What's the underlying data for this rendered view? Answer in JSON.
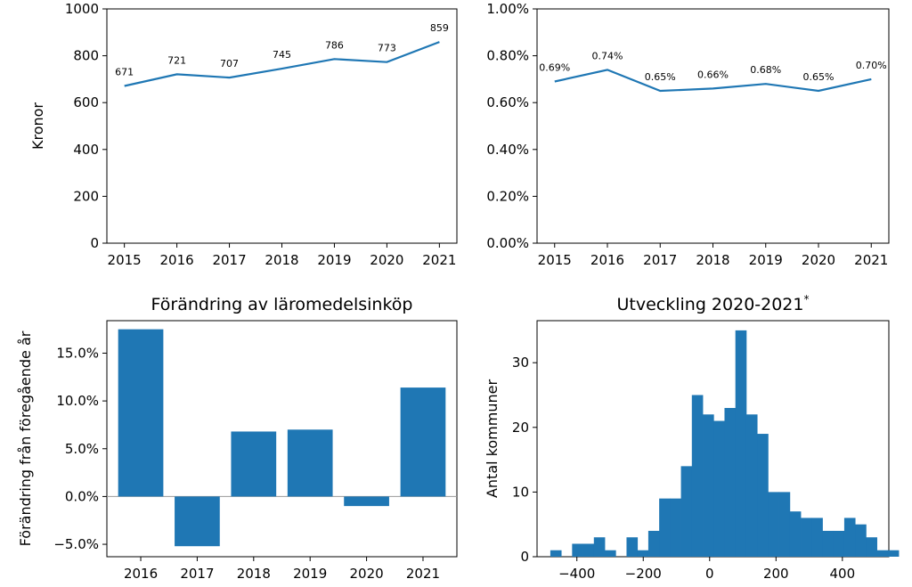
{
  "chart_data": [
    {
      "type": "line",
      "title": "",
      "xlabel": "",
      "ylabel": "Kronor",
      "x": [
        2015,
        2016,
        2017,
        2018,
        2019,
        2020,
        2021
      ],
      "values": [
        671,
        721,
        707,
        745,
        786,
        773,
        859
      ],
      "data_labels": [
        "671",
        "721",
        "707",
        "745",
        "786",
        "773",
        "859"
      ],
      "ylim": [
        0,
        1000
      ],
      "yticks": [
        0,
        200,
        400,
        600,
        800,
        1000
      ],
      "ytick_labels": [
        "0",
        "200",
        "400",
        "600",
        "800",
        "1000"
      ],
      "grid": false,
      "color": "#1f77b4"
    },
    {
      "type": "line",
      "title": "",
      "xlabel": "",
      "ylabel": "",
      "x": [
        2015,
        2016,
        2017,
        2018,
        2019,
        2020,
        2021
      ],
      "values": [
        0.69,
        0.74,
        0.65,
        0.66,
        0.68,
        0.65,
        0.7
      ],
      "data_labels": [
        "0.69%",
        "0.74%",
        "0.65%",
        "0.66%",
        "0.68%",
        "0.65%",
        "0.70%"
      ],
      "ylim": [
        0,
        1.0
      ],
      "yticks": [
        0,
        0.2,
        0.4,
        0.6,
        0.8,
        1.0
      ],
      "ytick_labels": [
        "0.00%",
        "0.20%",
        "0.40%",
        "0.60%",
        "0.80%",
        "1.00%"
      ],
      "grid": false,
      "color": "#1f77b4"
    },
    {
      "type": "bar",
      "title": "Förändring av läromedelsinköp",
      "xlabel": "",
      "ylabel": "Förändring från föregående år",
      "categories": [
        "2016",
        "2017",
        "2018",
        "2019",
        "2020",
        "2021"
      ],
      "values": [
        17.5,
        -5.2,
        6.8,
        7.0,
        -1.0,
        11.4
      ],
      "ylim": [
        -6.3,
        18.4
      ],
      "yticks": [
        -5,
        0,
        5,
        10,
        15
      ],
      "ytick_labels": [
        "−5.0%",
        "0.0%",
        "5.0%",
        "10.0%",
        "15.0%"
      ],
      "grid": false,
      "color": "#1f77b4"
    },
    {
      "type": "histogram",
      "title": "Utveckling 2020-2021",
      "title_mark": "*",
      "xlabel": "",
      "ylabel": "Antal kommuner",
      "bin_start": -480,
      "bin_width": 32.8,
      "counts": [
        1,
        0,
        2,
        2,
        3,
        1,
        0,
        3,
        1,
        4,
        9,
        9,
        14,
        25,
        22,
        21,
        23,
        35,
        22,
        19,
        10,
        10,
        7,
        6,
        6,
        4,
        4,
        6,
        5,
        3,
        1,
        1
      ],
      "xlim": [
        -520,
        540
      ],
      "ylim": [
        0,
        36.5
      ],
      "xticks": [
        -400,
        -200,
        0,
        200,
        400
      ],
      "xtick_labels": [
        "−400",
        "−200",
        "0",
        "200",
        "400"
      ],
      "yticks": [
        0,
        10,
        20,
        30
      ],
      "ytick_labels": [
        "0",
        "10",
        "20",
        "30"
      ],
      "grid": false,
      "color": "#1f77b4"
    }
  ]
}
